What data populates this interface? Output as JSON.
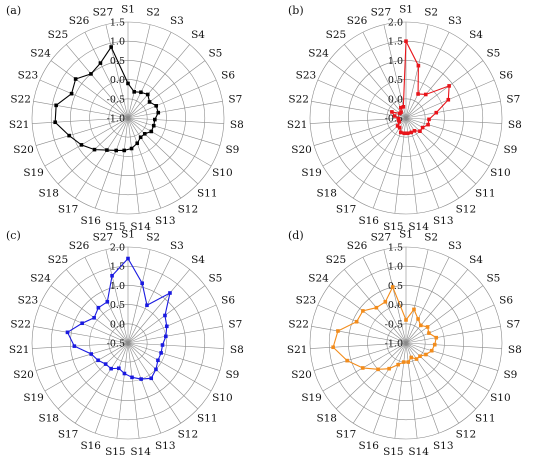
{
  "chart_data": [
    {
      "type": "radar",
      "panel_label": "(a)",
      "categories": [
        "S1",
        "S2",
        "S3",
        "S4",
        "S5",
        "S6",
        "S7",
        "S8",
        "S9",
        "S10",
        "S11",
        "S12",
        "S13",
        "S14",
        "S15",
        "S16",
        "S17",
        "S18",
        "S19",
        "S20",
        "S21",
        "S22",
        "S23",
        "S24",
        "S25",
        "S26",
        "S27"
      ],
      "rlim": [
        -1.0,
        1.5
      ],
      "tick_values": [
        -1.0,
        -0.5,
        0.0,
        0.5,
        1.0,
        1.5
      ],
      "tick_labels": [
        "-1.0",
        "-0.5",
        "0.0",
        "0.5",
        "1.0",
        "1.5"
      ],
      "series": [
        {
          "color": "#000000",
          "values": [
            -0.1,
            -0.3,
            -0.25,
            -0.2,
            -0.3,
            -0.2,
            -0.2,
            -0.3,
            -0.3,
            -0.3,
            -0.4,
            -0.4,
            -0.3,
            -0.2,
            -0.15,
            -0.1,
            0.0,
            0.2,
            0.4,
            0.6,
            0.9,
            0.9,
            0.6,
            0.7,
            0.5,
            0.6,
            0.9
          ]
        }
      ]
    },
    {
      "type": "radar",
      "panel_label": "(b)",
      "categories": [
        "S1",
        "S2",
        "S3",
        "S4",
        "S5",
        "S6",
        "S7",
        "S8",
        "S9",
        "S10",
        "S11",
        "S12",
        "S13",
        "S14",
        "S15",
        "S16",
        "S17",
        "S18",
        "S19",
        "S20",
        "S21",
        "S22",
        "S23",
        "S24",
        "S25",
        "S26",
        "S27"
      ],
      "rlim": [
        -0.5,
        2.0
      ],
      "tick_values": [
        -0.5,
        0.0,
        0.5,
        1.0,
        1.5,
        2.0
      ],
      "tick_labels": [
        "-0.5",
        "0.0",
        "0.5",
        "1.0",
        "1.5",
        "2.0"
      ],
      "series": [
        {
          "color": "#e8141a",
          "values": [
            1.5,
            0.9,
            0.2,
            0.3,
            0.9,
            0.7,
            0.3,
            0.1,
            0.1,
            0.0,
            0.0,
            -0.1,
            -0.1,
            -0.1,
            -0.1,
            -0.1,
            -0.2,
            -0.2,
            -0.3,
            -0.3,
            -0.3,
            -0.2,
            -0.1,
            -0.3,
            -0.3,
            -0.2,
            -0.2
          ]
        }
      ]
    },
    {
      "type": "radar",
      "panel_label": "(c)",
      "categories": [
        "S1",
        "S2",
        "S3",
        "S4",
        "S5",
        "S6",
        "S7",
        "S8",
        "S9",
        "S10",
        "S11",
        "S12",
        "S13",
        "S14",
        "S15",
        "S16",
        "S17",
        "S18",
        "S19",
        "S20",
        "S21",
        "S22",
        "S23",
        "S24",
        "S25",
        "S26",
        "S27"
      ],
      "rlim": [
        -0.5,
        2.0
      ],
      "tick_values": [
        -0.5,
        0.0,
        0.5,
        1.0,
        1.5,
        2.0
      ],
      "tick_labels": [
        "-0.5",
        "0.0",
        "0.5",
        "1.0",
        "1.5",
        "2.0"
      ],
      "series": [
        {
          "color": "#1a1ae0",
          "values": [
            1.7,
            1.1,
            0.6,
            1.2,
            0.7,
            0.6,
            0.5,
            0.4,
            0.4,
            0.4,
            0.5,
            0.6,
            0.5,
            0.4,
            0.3,
            0.2,
            0.3,
            0.3,
            0.4,
            0.5,
            0.9,
            1.1,
            0.8,
            0.6,
            0.7,
            0.7,
            1.3
          ]
        }
      ]
    },
    {
      "type": "radar",
      "panel_label": "(d)",
      "categories": [
        "S1",
        "S2",
        "S3",
        "S4",
        "S5",
        "S6",
        "S7",
        "S8",
        "S9",
        "S10",
        "S11",
        "S12",
        "S13",
        "S14",
        "S15",
        "S16",
        "S17",
        "S18",
        "S19",
        "S20",
        "S21",
        "S22",
        "S23",
        "S24",
        "S25",
        "S26",
        "S27"
      ],
      "rlim": [
        -1.0,
        1.5
      ],
      "tick_values": [
        -1.0,
        -0.5,
        0.0,
        0.5,
        1.0,
        1.5
      ],
      "tick_labels": [
        "-1.0",
        "-0.5",
        "0.0",
        "0.5",
        "1.0",
        "1.5"
      ],
      "series": [
        {
          "color": "#f28c1c",
          "values": [
            -0.4,
            -0.1,
            -0.3,
            -0.4,
            -0.3,
            -0.35,
            -0.2,
            -0.25,
            -0.3,
            -0.4,
            -0.5,
            -0.5,
            -0.6,
            -0.5,
            -0.5,
            -0.4,
            -0.2,
            0.0,
            0.3,
            0.6,
            0.9,
            0.8,
            0.4,
            0.4,
            0.2,
            0.2,
            0.5
          ]
        }
      ]
    }
  ]
}
